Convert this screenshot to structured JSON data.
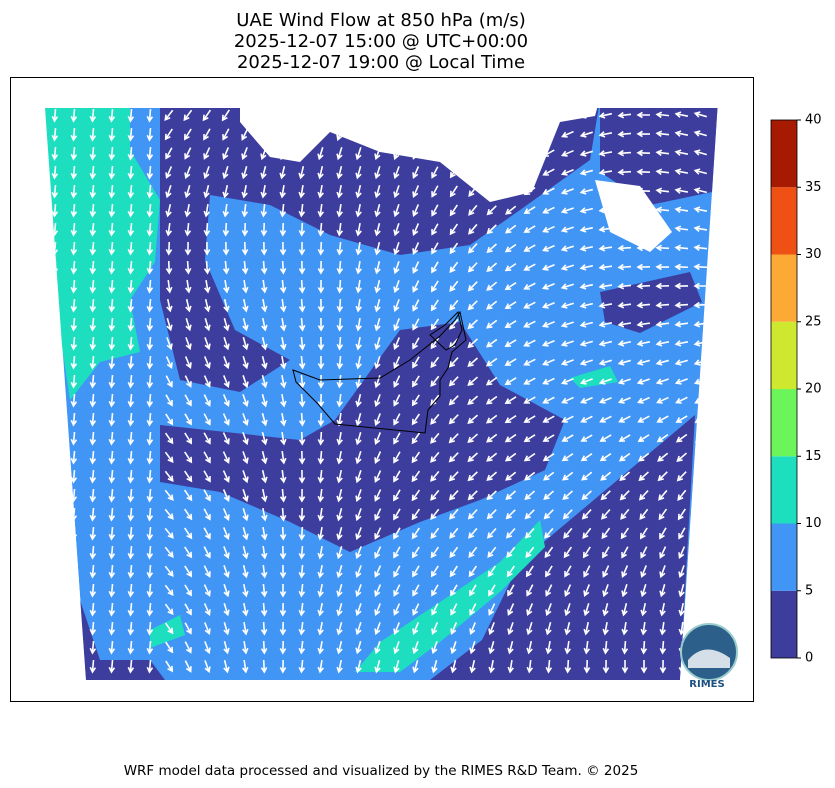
{
  "title": [
    "UAE Wind Flow at 850 hPa (m/s)",
    "2025-12-07 15:00 @ UTC+00:00",
    "2025-12-07 19:00 @ Local Time"
  ],
  "colorbar": {
    "ticks": [
      0,
      5,
      10,
      15,
      20,
      25,
      30,
      35,
      40
    ],
    "colors": [
      "#3d3d9e",
      "#4195f5",
      "#1ddfc0",
      "#6bf55a",
      "#cde82f",
      "#fca935",
      "#ee5113",
      "#a51a00"
    ]
  },
  "logo": "RIMES",
  "footer": "WRF model data processed and visualized by the RIMES R&D Team. © 2025"
}
